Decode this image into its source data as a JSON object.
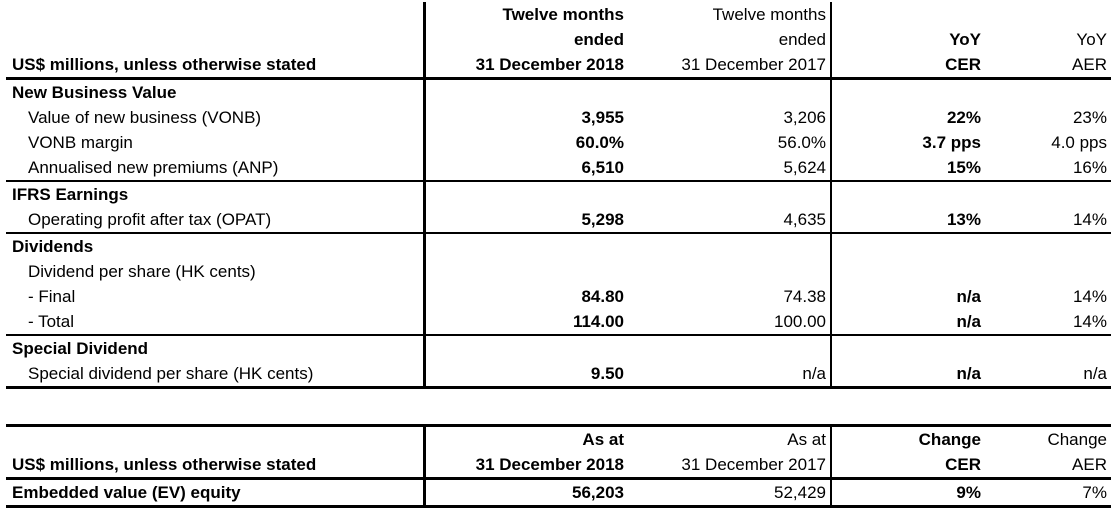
{
  "top_table": {
    "header": {
      "label": "US$ millions, unless otherwise stated",
      "col1": [
        "Twelve months",
        "ended",
        "31 December 2018"
      ],
      "col2": [
        "Twelve months",
        "ended",
        "31 December 2017"
      ],
      "col3": [
        "YoY",
        "CER"
      ],
      "col4": [
        "YoY",
        "AER"
      ]
    },
    "sections": {
      "nbv": {
        "title": "New Business Value",
        "rows": [
          {
            "label": "Value of new business (VONB)",
            "v2018": "3,955",
            "v2017": "3,206",
            "cer": "22%",
            "aer": "23%"
          },
          {
            "label": "VONB margin",
            "v2018": "60.0%",
            "v2017": "56.0%",
            "cer": "3.7 pps",
            "aer": "4.0 pps"
          },
          {
            "label": "Annualised new premiums (ANP)",
            "v2018": "6,510",
            "v2017": "5,624",
            "cer": "15%",
            "aer": "16%"
          }
        ]
      },
      "ifrs": {
        "title": "IFRS Earnings",
        "rows": [
          {
            "label": "Operating profit after tax (OPAT)",
            "v2018": "5,298",
            "v2017": "4,635",
            "cer": "13%",
            "aer": "14%"
          }
        ]
      },
      "div": {
        "title": "Dividends",
        "sub": "Dividend per share (HK cents)",
        "rows": [
          {
            "label": "- Final",
            "v2018": "84.80",
            "v2017": "74.38",
            "cer": "n/a",
            "aer": "14%"
          },
          {
            "label": "- Total",
            "v2018": "114.00",
            "v2017": "100.00",
            "cer": "n/a",
            "aer": "14%"
          }
        ]
      },
      "special": {
        "title": "Special Dividend",
        "rows": [
          {
            "label": "Special dividend per share (HK cents)",
            "v2018": "9.50",
            "v2017": "n/a",
            "cer": "n/a",
            "aer": "n/a"
          }
        ]
      }
    }
  },
  "bottom_table": {
    "header": {
      "label": "US$ millions, unless otherwise stated",
      "col1": [
        "As at",
        "31 December 2018"
      ],
      "col2": [
        "As at",
        "31 December 2017"
      ],
      "col3": [
        "Change",
        "CER"
      ],
      "col4": [
        "Change",
        "AER"
      ]
    },
    "row": {
      "label": "Embedded value (EV) equity",
      "v2018": "56,203",
      "v2017": "52,429",
      "cer": "9%",
      "aer": "7%"
    }
  }
}
